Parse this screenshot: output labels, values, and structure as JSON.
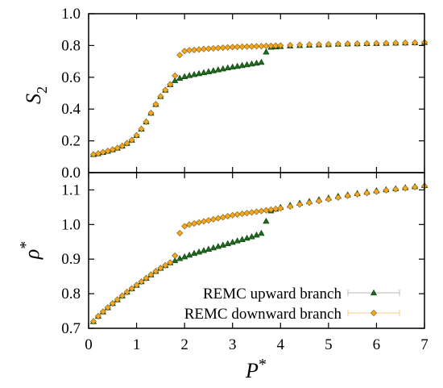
{
  "colors": {
    "upward": "#1e6b1e",
    "downward": "#f5a623",
    "downward_edge": "#7a5a10",
    "axis": "#000000",
    "errorbar": "#bbbbbb"
  },
  "chart_data": [
    {
      "type": "scatter",
      "ylabel_main": "S",
      "ylabel_sub": "2",
      "xlabel": "",
      "xlim": [
        0,
        7
      ],
      "ylim": [
        0.0,
        1.0
      ],
      "yticks": [
        "0.0",
        "0.2",
        "0.4",
        "0.6",
        "0.8",
        "1.0"
      ],
      "ytick_values": [
        0.0,
        0.2,
        0.4,
        0.6,
        0.8,
        1.0
      ],
      "xticks": [
        0,
        1,
        2,
        3,
        4,
        5,
        6,
        7
      ],
      "grid": false,
      "series": [
        {
          "name": "REMC upward branch",
          "marker": "triangle",
          "x": [
            0.1,
            0.2,
            0.3,
            0.4,
            0.5,
            0.6,
            0.7,
            0.8,
            0.9,
            1.0,
            1.1,
            1.2,
            1.3,
            1.4,
            1.5,
            1.6,
            1.7,
            1.8,
            1.9,
            2.0,
            2.1,
            2.2,
            2.3,
            2.4,
            2.5,
            2.6,
            2.7,
            2.8,
            2.9,
            3.0,
            3.1,
            3.2,
            3.3,
            3.4,
            3.5,
            3.6,
            3.7,
            3.8,
            3.9,
            4.0,
            4.2,
            4.4,
            4.6,
            4.8,
            5.0,
            5.2,
            5.4,
            5.6,
            5.8,
            6.0,
            6.2,
            6.4,
            6.6,
            6.8,
            7.0
          ],
          "y": [
            0.115,
            0.12,
            0.128,
            0.136,
            0.145,
            0.155,
            0.168,
            0.185,
            0.205,
            0.235,
            0.275,
            0.32,
            0.375,
            0.43,
            0.48,
            0.52,
            0.555,
            0.58,
            0.595,
            0.605,
            0.612,
            0.618,
            0.624,
            0.63,
            0.636,
            0.642,
            0.648,
            0.654,
            0.66,
            0.665,
            0.67,
            0.675,
            0.68,
            0.685,
            0.69,
            0.695,
            0.76,
            0.79,
            0.792,
            0.795,
            0.798,
            0.801,
            0.803,
            0.805,
            0.807,
            0.809,
            0.811,
            0.812,
            0.813,
            0.814,
            0.815,
            0.816,
            0.817,
            0.818,
            0.82
          ]
        },
        {
          "name": "REMC downward branch",
          "marker": "diamond",
          "x": [
            0.1,
            0.2,
            0.3,
            0.4,
            0.5,
            0.6,
            0.7,
            0.8,
            0.9,
            1.0,
            1.1,
            1.2,
            1.3,
            1.4,
            1.5,
            1.6,
            1.7,
            1.8,
            1.9,
            2.0,
            2.1,
            2.2,
            2.3,
            2.4,
            2.5,
            2.6,
            2.7,
            2.8,
            2.9,
            3.0,
            3.1,
            3.2,
            3.3,
            3.4,
            3.5,
            3.6,
            3.7,
            3.8,
            3.9,
            4.0,
            4.2,
            4.4,
            4.6,
            4.8,
            5.0,
            5.2,
            5.4,
            5.6,
            5.8,
            6.0,
            6.2,
            6.4,
            6.6,
            6.8,
            7.0
          ],
          "y": [
            0.115,
            0.12,
            0.128,
            0.136,
            0.145,
            0.155,
            0.168,
            0.185,
            0.205,
            0.235,
            0.275,
            0.32,
            0.375,
            0.43,
            0.48,
            0.52,
            0.555,
            0.61,
            0.74,
            0.765,
            0.77,
            0.772,
            0.775,
            0.778,
            0.78,
            0.782,
            0.784,
            0.786,
            0.788,
            0.79,
            0.791,
            0.792,
            0.793,
            0.794,
            0.795,
            0.796,
            0.797,
            0.798,
            0.799,
            0.8,
            0.802,
            0.804,
            0.806,
            0.807,
            0.808,
            0.81,
            0.811,
            0.812,
            0.813,
            0.814,
            0.815,
            0.816,
            0.817,
            0.818,
            0.82
          ]
        }
      ]
    },
    {
      "type": "scatter",
      "ylabel_main": "ρ",
      "ylabel_sup": "*",
      "xlabel_main": "P",
      "xlabel_sup": "*",
      "xlim": [
        0,
        7
      ],
      "ylim": [
        0.7,
        1.15
      ],
      "yticks": [
        "0.7",
        "0.8",
        "0.9",
        "1.0",
        "1.1"
      ],
      "ytick_values": [
        0.7,
        0.8,
        0.9,
        1.0,
        1.1
      ],
      "xticks": [
        "0",
        "1",
        "2",
        "3",
        "4",
        "5",
        "6",
        "7"
      ],
      "xtick_values": [
        0,
        1,
        2,
        3,
        4,
        5,
        6,
        7
      ],
      "grid": false,
      "legend_position": "bottom-right",
      "series": [
        {
          "name": "REMC upward branch",
          "marker": "triangle",
          "x": [
            0.1,
            0.2,
            0.3,
            0.4,
            0.5,
            0.6,
            0.7,
            0.8,
            0.9,
            1.0,
            1.1,
            1.2,
            1.3,
            1.4,
            1.5,
            1.6,
            1.7,
            1.8,
            1.9,
            2.0,
            2.1,
            2.2,
            2.3,
            2.4,
            2.5,
            2.6,
            2.7,
            2.8,
            2.9,
            3.0,
            3.1,
            3.2,
            3.3,
            3.4,
            3.5,
            3.6,
            3.7,
            3.8,
            3.9,
            4.0,
            4.2,
            4.4,
            4.6,
            4.8,
            5.0,
            5.2,
            5.4,
            5.6,
            5.8,
            6.0,
            6.2,
            6.4,
            6.6,
            6.8,
            7.0
          ],
          "y": [
            0.72,
            0.735,
            0.748,
            0.76,
            0.772,
            0.783,
            0.794,
            0.805,
            0.815,
            0.825,
            0.835,
            0.845,
            0.855,
            0.865,
            0.874,
            0.882,
            0.89,
            0.896,
            0.902,
            0.907,
            0.912,
            0.917,
            0.921,
            0.925,
            0.929,
            0.933,
            0.937,
            0.941,
            0.945,
            0.949,
            0.953,
            0.957,
            0.961,
            0.965,
            0.97,
            0.975,
            1.01,
            1.04,
            1.045,
            1.05,
            1.056,
            1.062,
            1.067,
            1.072,
            1.077,
            1.082,
            1.086,
            1.09,
            1.094,
            1.098,
            1.101,
            1.104,
            1.107,
            1.11,
            1.113
          ]
        },
        {
          "name": "REMC downward branch",
          "marker": "diamond",
          "x": [
            0.1,
            0.2,
            0.3,
            0.4,
            0.5,
            0.6,
            0.7,
            0.8,
            0.9,
            1.0,
            1.1,
            1.2,
            1.3,
            1.4,
            1.5,
            1.6,
            1.7,
            1.8,
            1.9,
            2.0,
            2.1,
            2.2,
            2.3,
            2.4,
            2.5,
            2.6,
            2.7,
            2.8,
            2.9,
            3.0,
            3.1,
            3.2,
            3.3,
            3.4,
            3.5,
            3.6,
            3.7,
            3.8,
            3.9,
            4.0,
            4.2,
            4.4,
            4.6,
            4.8,
            5.0,
            5.2,
            5.4,
            5.6,
            5.8,
            6.0,
            6.2,
            6.4,
            6.6,
            6.8,
            7.0
          ],
          "y": [
            0.72,
            0.735,
            0.748,
            0.76,
            0.772,
            0.783,
            0.794,
            0.805,
            0.815,
            0.825,
            0.835,
            0.845,
            0.855,
            0.865,
            0.874,
            0.882,
            0.89,
            0.91,
            0.975,
            0.995,
            1.0,
            1.003,
            1.006,
            1.009,
            1.012,
            1.015,
            1.018,
            1.021,
            1.024,
            1.027,
            1.029,
            1.031,
            1.033,
            1.035,
            1.037,
            1.039,
            1.041,
            1.043,
            1.045,
            1.047,
            1.052,
            1.058,
            1.063,
            1.068,
            1.073,
            1.078,
            1.083,
            1.087,
            1.091,
            1.095,
            1.099,
            1.102,
            1.105,
            1.108,
            1.111
          ]
        }
      ]
    }
  ]
}
